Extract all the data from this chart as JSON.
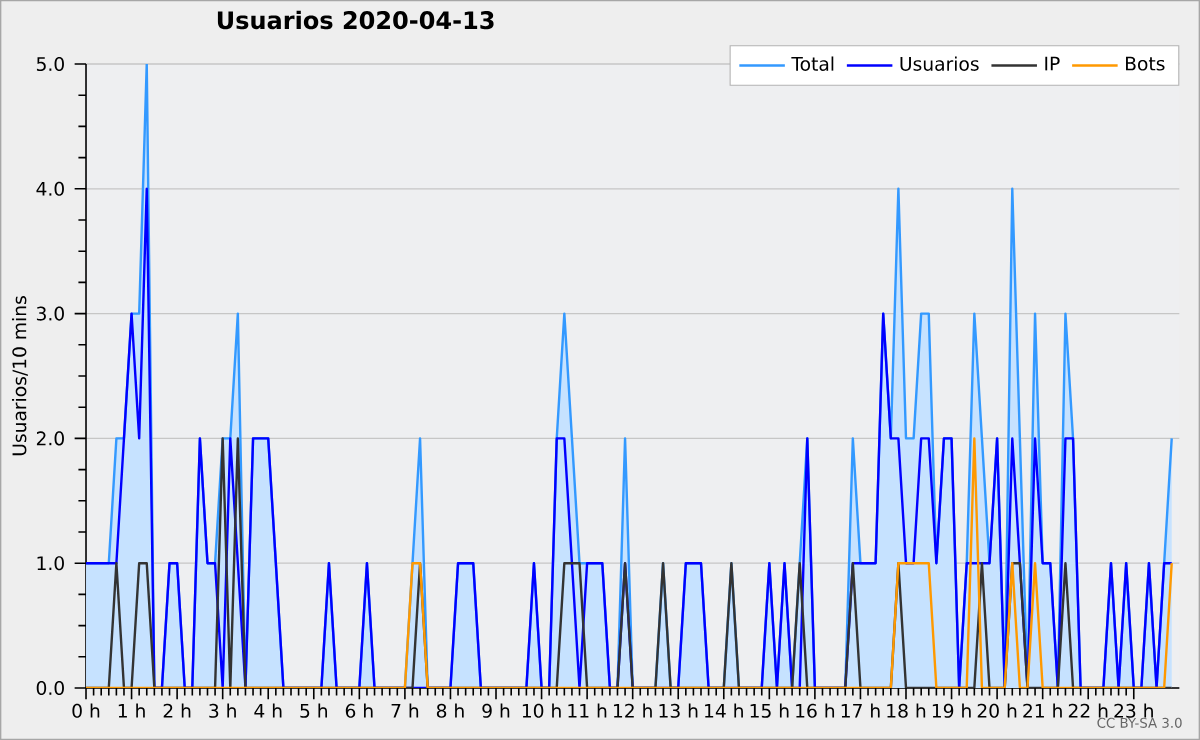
{
  "chart_data": {
    "type": "line",
    "title": "Usuarios  2020-04-13",
    "ylabel": "Usuarios/10 mins",
    "annotations": [
      "CC BY-SA 3.0"
    ],
    "x": [
      0,
      0.167,
      0.333,
      0.5,
      0.667,
      0.833,
      1,
      1.167,
      1.333,
      1.5,
      1.667,
      1.833,
      2,
      2.167,
      2.333,
      2.5,
      2.667,
      2.833,
      3,
      3.167,
      3.333,
      3.5,
      3.667,
      3.833,
      4,
      4.167,
      4.333,
      4.5,
      4.667,
      4.833,
      5,
      5.167,
      5.333,
      5.5,
      5.667,
      5.833,
      6,
      6.167,
      6.333,
      6.5,
      6.667,
      6.833,
      7,
      7.167,
      7.333,
      7.5,
      7.667,
      7.833,
      8,
      8.167,
      8.333,
      8.5,
      8.667,
      8.833,
      9,
      9.167,
      9.333,
      9.5,
      9.667,
      9.833,
      10,
      10.167,
      10.333,
      10.5,
      10.667,
      10.833,
      11,
      11.167,
      11.333,
      11.5,
      11.667,
      11.833,
      12,
      12.167,
      12.333,
      12.5,
      12.667,
      12.833,
      13,
      13.167,
      13.333,
      13.5,
      13.667,
      13.833,
      14,
      14.167,
      14.333,
      14.5,
      14.667,
      14.833,
      15,
      15.167,
      15.333,
      15.5,
      15.667,
      15.833,
      16,
      16.167,
      16.333,
      16.5,
      16.667,
      16.833,
      17,
      17.167,
      17.333,
      17.5,
      17.667,
      17.833,
      18,
      18.167,
      18.333,
      18.5,
      18.667,
      18.833,
      19,
      19.167,
      19.333,
      19.5,
      19.667,
      19.833,
      20,
      20.167,
      20.333,
      20.5,
      20.667,
      20.833,
      21,
      21.167,
      21.333,
      21.5,
      21.667,
      21.833,
      22,
      22.167,
      22.333,
      22.5,
      22.667,
      22.833,
      23,
      23.167,
      23.333,
      23.5,
      23.667,
      23.833
    ],
    "series": [
      {
        "name": "Total",
        "type": "area",
        "color": "#3399ff",
        "values": [
          1,
          1,
          1,
          1,
          2,
          2,
          3,
          3,
          5,
          0,
          0,
          1,
          1,
          0,
          0,
          2,
          1,
          1,
          2,
          2,
          3,
          0,
          2,
          2,
          2,
          1,
          0,
          0,
          0,
          0,
          0,
          0,
          1,
          0,
          0,
          0,
          0,
          1,
          0,
          0,
          0,
          0,
          0,
          1,
          2,
          0,
          0,
          0,
          0,
          1,
          1,
          1,
          0,
          0,
          0,
          0,
          0,
          0,
          0,
          1,
          0,
          0,
          2,
          3,
          2,
          1,
          1,
          1,
          1,
          0,
          0,
          2,
          0,
          0,
          0,
          0,
          1,
          0,
          0,
          1,
          1,
          1,
          0,
          0,
          0,
          1,
          0,
          0,
          0,
          0,
          1,
          0,
          1,
          0,
          1,
          2,
          0,
          0,
          0,
          0,
          0,
          2,
          1,
          1,
          1,
          3,
          2,
          4,
          2,
          2,
          3,
          3,
          1,
          2,
          2,
          0,
          1,
          3,
          2,
          1,
          2,
          0,
          4,
          2,
          0,
          3,
          1,
          1,
          0,
          3,
          2,
          0,
          0,
          0,
          0,
          1,
          0,
          1,
          0,
          0,
          1,
          0,
          1,
          2
        ]
      },
      {
        "name": "Usuarios",
        "type": "line",
        "color": "#0000ff",
        "values": [
          1,
          1,
          1,
          1,
          1,
          2,
          3,
          2,
          4,
          0,
          0,
          1,
          1,
          0,
          0,
          2,
          1,
          1,
          0,
          2,
          1,
          0,
          2,
          2,
          2,
          1,
          0,
          0,
          0,
          0,
          0,
          0,
          1,
          0,
          0,
          0,
          0,
          1,
          0,
          0,
          0,
          0,
          0,
          0,
          0,
          0,
          0,
          0,
          0,
          1,
          1,
          1,
          0,
          0,
          0,
          0,
          0,
          0,
          0,
          1,
          0,
          0,
          2,
          2,
          1,
          0,
          1,
          1,
          1,
          0,
          0,
          1,
          0,
          0,
          0,
          0,
          0,
          0,
          0,
          1,
          1,
          1,
          0,
          0,
          0,
          0,
          0,
          0,
          0,
          0,
          1,
          0,
          1,
          0,
          0,
          2,
          0,
          0,
          0,
          0,
          0,
          1,
          1,
          1,
          1,
          3,
          2,
          2,
          1,
          1,
          2,
          2,
          1,
          2,
          2,
          0,
          1,
          1,
          1,
          1,
          2,
          0,
          2,
          1,
          0,
          2,
          1,
          1,
          0,
          2,
          2,
          0,
          0,
          0,
          0,
          1,
          0,
          1,
          0,
          0,
          1,
          0,
          1,
          1
        ]
      },
      {
        "name": "IP",
        "type": "line",
        "color": "#333333",
        "values": [
          0,
          0,
          0,
          0,
          1,
          0,
          0,
          1,
          1,
          0,
          0,
          0,
          0,
          0,
          0,
          0,
          0,
          0,
          2,
          0,
          2,
          0,
          0,
          0,
          0,
          0,
          0,
          0,
          0,
          0,
          0,
          0,
          0,
          0,
          0,
          0,
          0,
          0,
          0,
          0,
          0,
          0,
          0,
          0,
          1,
          0,
          0,
          0,
          0,
          0,
          0,
          0,
          0,
          0,
          0,
          0,
          0,
          0,
          0,
          0,
          0,
          0,
          0,
          1,
          1,
          1,
          0,
          0,
          0,
          0,
          0,
          1,
          0,
          0,
          0,
          0,
          1,
          0,
          0,
          0,
          0,
          0,
          0,
          0,
          0,
          1,
          0,
          0,
          0,
          0,
          0,
          0,
          0,
          0,
          1,
          0,
          0,
          0,
          0,
          0,
          0,
          1,
          0,
          0,
          0,
          0,
          0,
          1,
          0,
          0,
          0,
          0,
          0,
          0,
          0,
          0,
          0,
          0,
          1,
          0,
          0,
          0,
          1,
          1,
          0,
          0,
          0,
          0,
          0,
          1,
          0,
          0,
          0,
          0,
          0,
          0,
          0,
          0,
          0,
          0,
          0,
          0,
          0,
          0
        ]
      },
      {
        "name": "Bots",
        "type": "line",
        "color": "#ff9900",
        "values": [
          0,
          0,
          0,
          0,
          0,
          0,
          0,
          0,
          0,
          0,
          0,
          0,
          0,
          0,
          0,
          0,
          0,
          0,
          0,
          0,
          0,
          0,
          0,
          0,
          0,
          0,
          0,
          0,
          0,
          0,
          0,
          0,
          0,
          0,
          0,
          0,
          0,
          0,
          0,
          0,
          0,
          0,
          0,
          1,
          1,
          0,
          0,
          0,
          0,
          0,
          0,
          0,
          0,
          0,
          0,
          0,
          0,
          0,
          0,
          0,
          0,
          0,
          0,
          0,
          0,
          0,
          0,
          0,
          0,
          0,
          0,
          0,
          0,
          0,
          0,
          0,
          0,
          0,
          0,
          0,
          0,
          0,
          0,
          0,
          0,
          0,
          0,
          0,
          0,
          0,
          0,
          0,
          0,
          0,
          0,
          0,
          0,
          0,
          0,
          0,
          0,
          0,
          0,
          0,
          0,
          0,
          0,
          1,
          1,
          1,
          1,
          1,
          0,
          0,
          0,
          0,
          0,
          2,
          0,
          0,
          0,
          0,
          1,
          0,
          0,
          1,
          0,
          0,
          0,
          0,
          0,
          0,
          0,
          0,
          0,
          0,
          0,
          0,
          0,
          0,
          0,
          0,
          0,
          1
        ]
      }
    ],
    "xlim": [
      0,
      24
    ],
    "xticks": [
      {
        "value": 0,
        "label": "0 h"
      },
      {
        "value": 1,
        "label": "1 h"
      },
      {
        "value": 2,
        "label": "2 h"
      },
      {
        "value": 3,
        "label": "3 h"
      },
      {
        "value": 4,
        "label": "4 h"
      },
      {
        "value": 5,
        "label": "5 h"
      },
      {
        "value": 6,
        "label": "6 h"
      },
      {
        "value": 7,
        "label": "7 h"
      },
      {
        "value": 8,
        "label": "8 h"
      },
      {
        "value": 9,
        "label": "9 h"
      },
      {
        "value": 10,
        "label": "10 h"
      },
      {
        "value": 11,
        "label": "11 h"
      },
      {
        "value": 12,
        "label": "12 h"
      },
      {
        "value": 13,
        "label": "13 h"
      },
      {
        "value": 14,
        "label": "14 h"
      },
      {
        "value": 15,
        "label": "15 h"
      },
      {
        "value": 16,
        "label": "16 h"
      },
      {
        "value": 17,
        "label": "17 h"
      },
      {
        "value": 18,
        "label": "18 h"
      },
      {
        "value": 19,
        "label": "19 h"
      },
      {
        "value": 20,
        "label": "20 h"
      },
      {
        "value": 21,
        "label": "21 h"
      },
      {
        "value": 22,
        "label": "22 h"
      },
      {
        "value": 23,
        "label": "23 h"
      }
    ],
    "ylim": [
      0,
      5
    ],
    "yticks": [
      {
        "value": 0,
        "label": "0.0"
      },
      {
        "value": 1,
        "label": "1.0"
      },
      {
        "value": 2,
        "label": "2.0"
      },
      {
        "value": 3,
        "label": "3.0"
      },
      {
        "value": 4,
        "label": "4.0"
      },
      {
        "value": 5,
        "label": "5.0"
      }
    ],
    "grid": "y",
    "legend": "top right"
  }
}
